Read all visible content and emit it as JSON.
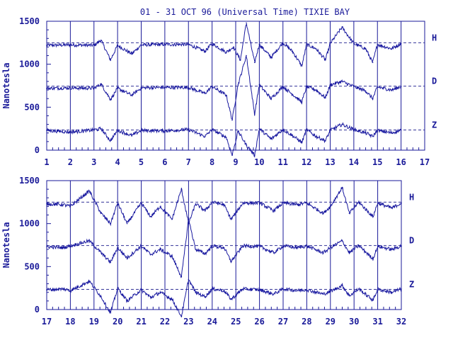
{
  "colors": {
    "trace": "#1a1aa0",
    "axes": "#1a1a99",
    "background": "#ffffff"
  },
  "chart_data": [
    {
      "type": "line",
      "title": "01 - 31 OCT 96 (Universal Time) TIXIE BAY",
      "xlabel": "",
      "ylabel": "Nanotesla",
      "xlim": [
        1,
        17
      ],
      "ylim": [
        0,
        1500
      ],
      "x_ticks": [
        "1",
        "2",
        "3",
        "4",
        "5",
        "6",
        "7",
        "8",
        "9",
        "10",
        "11",
        "12",
        "13",
        "14",
        "15",
        "16",
        "17"
      ],
      "y_ticks": [
        "0",
        "500",
        "1000",
        "1500"
      ],
      "baselines": {
        "H": 1250,
        "D": 745,
        "Z": 235
      },
      "series": [
        {
          "name": "H",
          "baseline": 1250,
          "x": [
            1,
            2,
            3,
            3.3,
            3.7,
            4,
            4.6,
            5,
            6,
            7,
            7.7,
            8,
            8.6,
            8.9,
            9.2,
            9.45,
            9.8,
            10,
            10.5,
            11,
            11.4,
            11.8,
            12,
            12.4,
            12.8,
            13,
            13.5,
            14,
            14.5,
            14.8,
            15,
            15.6,
            16
          ],
          "y": [
            1220,
            1225,
            1220,
            1280,
            1050,
            1220,
            1120,
            1225,
            1230,
            1230,
            1150,
            1240,
            1140,
            1200,
            1050,
            1480,
            1020,
            1230,
            1080,
            1250,
            1150,
            980,
            1230,
            1180,
            1050,
            1240,
            1430,
            1240,
            1180,
            1020,
            1230,
            1180,
            1240
          ]
        },
        {
          "name": "D",
          "baseline": 745,
          "x": [
            1,
            2,
            3,
            3.3,
            3.7,
            4,
            4.6,
            5,
            6,
            7,
            7.7,
            8,
            8.6,
            8.85,
            9.1,
            9.45,
            9.8,
            10,
            10.5,
            11,
            11.4,
            11.8,
            12,
            12.4,
            12.8,
            13,
            13.5,
            14,
            14.5,
            14.8,
            15,
            15.6,
            16
          ],
          "y": [
            720,
            725,
            720,
            770,
            590,
            720,
            640,
            725,
            730,
            730,
            660,
            740,
            640,
            350,
            760,
            1100,
            420,
            760,
            600,
            740,
            650,
            560,
            740,
            700,
            610,
            760,
            800,
            740,
            690,
            600,
            735,
            700,
            740
          ]
        },
        {
          "name": "Z",
          "baseline": 235,
          "x": [
            1,
            2,
            3,
            3.3,
            3.7,
            4,
            4.6,
            5,
            6,
            7,
            7.7,
            8,
            8.6,
            8.85,
            9.1,
            9.45,
            9.8,
            10,
            10.5,
            11,
            11.4,
            11.8,
            12,
            12.4,
            12.8,
            13,
            13.5,
            14,
            14.5,
            14.8,
            15,
            15.6,
            16
          ],
          "y": [
            230,
            210,
            235,
            250,
            110,
            230,
            170,
            230,
            225,
            240,
            160,
            240,
            150,
            -60,
            220,
            60,
            -60,
            250,
            130,
            240,
            170,
            90,
            240,
            160,
            110,
            230,
            300,
            240,
            200,
            160,
            230,
            200,
            235
          ]
        }
      ]
    },
    {
      "type": "line",
      "title": "",
      "xlabel": "",
      "ylabel": "Nanotesla",
      "xlim": [
        17,
        32
      ],
      "ylim": [
        0,
        1500
      ],
      "x_ticks": [
        "17",
        "18",
        "19",
        "20",
        "21",
        "22",
        "23",
        "24",
        "25",
        "26",
        "27",
        "28",
        "29",
        "30",
        "31",
        "32"
      ],
      "y_ticks": [
        "0",
        "500",
        "1000",
        "1500"
      ],
      "baselines": {
        "H": 1250,
        "D": 745,
        "Z": 235
      },
      "series": [
        {
          "name": "H",
          "baseline": 1250,
          "x": [
            17,
            17.7,
            18,
            18.8,
            19.3,
            19.7,
            20,
            20.4,
            21,
            21.4,
            21.8,
            22.3,
            22.7,
            23,
            23.3,
            23.7,
            24,
            24.5,
            24.8,
            25.3,
            26,
            26.6,
            27,
            27.6,
            28,
            28.7,
            29,
            29.5,
            29.8,
            30.2,
            30.8,
            31,
            31.6,
            32
          ],
          "y": [
            1230,
            1220,
            1200,
            1380,
            1120,
            1000,
            1240,
            1000,
            1240,
            1080,
            1200,
            1050,
            1400,
            1000,
            1230,
            1150,
            1250,
            1220,
            1050,
            1240,
            1240,
            1150,
            1240,
            1220,
            1240,
            1120,
            1200,
            1420,
            1120,
            1250,
            1080,
            1240,
            1180,
            1240
          ]
        },
        {
          "name": "D",
          "baseline": 745,
          "x": [
            17,
            17.7,
            18,
            18.8,
            19.3,
            19.7,
            20,
            20.4,
            21,
            21.4,
            21.8,
            22.3,
            22.7,
            23,
            23.3,
            23.7,
            24,
            24.5,
            24.8,
            25.3,
            26,
            26.6,
            27,
            27.6,
            28,
            28.7,
            29,
            29.5,
            29.8,
            30.2,
            30.8,
            31,
            31.6,
            32
          ],
          "y": [
            730,
            720,
            740,
            800,
            660,
            550,
            720,
            600,
            740,
            640,
            700,
            620,
            380,
            1050,
            700,
            650,
            740,
            720,
            560,
            740,
            735,
            660,
            740,
            720,
            740,
            660,
            720,
            800,
            660,
            745,
            590,
            735,
            700,
            740
          ]
        },
        {
          "name": "Z",
          "baseline": 235,
          "x": [
            17,
            17.7,
            18,
            18.8,
            19.3,
            19.7,
            20,
            20.4,
            21,
            21.4,
            21.8,
            22.3,
            22.7,
            23,
            23.3,
            23.7,
            24,
            24.5,
            24.8,
            25.3,
            26,
            26.6,
            27,
            27.6,
            28,
            28.7,
            29,
            29.5,
            29.8,
            30.2,
            30.8,
            31,
            31.6,
            32
          ],
          "y": [
            230,
            240,
            220,
            330,
            150,
            -40,
            250,
            100,
            230,
            140,
            200,
            120,
            -80,
            350,
            200,
            150,
            240,
            220,
            120,
            240,
            230,
            180,
            240,
            220,
            230,
            180,
            210,
            280,
            160,
            240,
            110,
            235,
            200,
            240
          ]
        }
      ]
    }
  ]
}
